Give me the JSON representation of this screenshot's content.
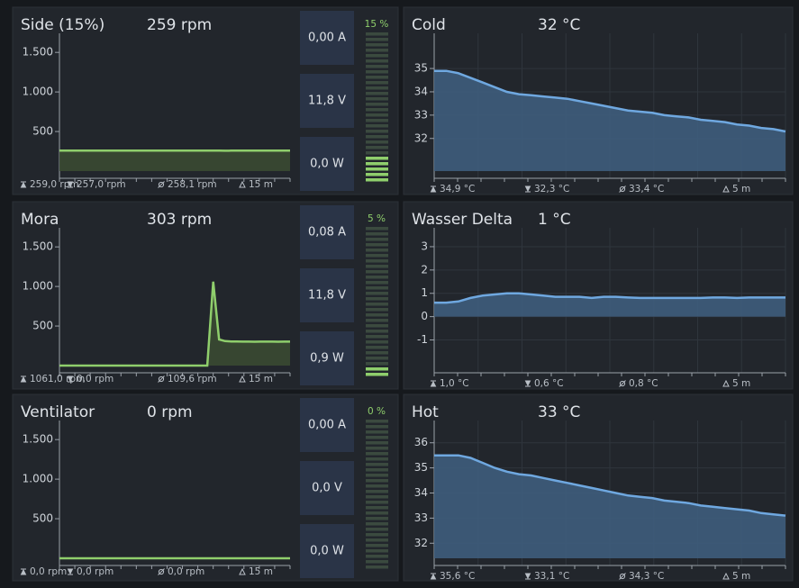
{
  "panels": [
    {
      "kind": "fan",
      "title": "Side (15%)",
      "reading": "259 rpm",
      "chart": {
        "type": "line",
        "color": "#8fce6c",
        "grid": false,
        "ylim": [
          0,
          1650
        ],
        "yticks": [
          {
            "value": 1500,
            "label": "1.500"
          },
          {
            "value": 1000,
            "label": "1.000"
          },
          500
        ],
        "values": [
          259,
          259,
          259,
          258,
          259,
          259,
          258,
          259,
          259,
          259,
          258,
          259,
          259,
          259,
          259,
          258,
          259,
          259,
          259,
          259,
          258,
          258,
          259,
          259,
          259,
          259,
          258,
          259,
          257,
          258,
          259,
          259,
          258,
          259,
          259,
          259,
          258,
          259,
          259,
          259
        ]
      },
      "stats": [
        "259,0 rpm",
        "257,0 rpm",
        "258,1 rpm",
        "15 m"
      ],
      "readouts": [
        "0,00 A",
        "11,8 V",
        "0,0 W"
      ],
      "gauge": {
        "value": 15,
        "label": "15 %"
      }
    },
    {
      "kind": "temp",
      "title": "Cold",
      "reading": "32 °C",
      "chart": {
        "type": "area",
        "color": "#6fa8e0",
        "grid": true,
        "ylim": [
          30.6,
          36.2
        ],
        "yticks": [
          32,
          33,
          34,
          35
        ],
        "values": [
          34.9,
          34.9,
          34.8,
          34.6,
          34.4,
          34.2,
          34.0,
          33.9,
          33.85,
          33.8,
          33.75,
          33.7,
          33.6,
          33.5,
          33.4,
          33.3,
          33.2,
          33.15,
          33.1,
          33.0,
          32.95,
          32.9,
          32.8,
          32.75,
          32.7,
          32.6,
          32.55,
          32.45,
          32.4,
          32.3
        ]
      },
      "stats": [
        "34,9 °C",
        "32,3 °C",
        "33,4 °C",
        "5 m"
      ]
    },
    {
      "kind": "fan",
      "title": "Mora",
      "reading": "303 rpm",
      "chart": {
        "type": "line",
        "color": "#8fce6c",
        "grid": false,
        "ylim": [
          0,
          1650
        ],
        "yticks": [
          {
            "value": 1500,
            "label": "1.500"
          },
          {
            "value": 1000,
            "label": "1.000"
          },
          500
        ],
        "values": [
          0,
          0,
          0,
          0,
          0,
          0,
          0,
          0,
          0,
          0,
          0,
          0,
          0,
          0,
          0,
          0,
          0,
          0,
          0,
          0,
          0,
          0,
          0,
          0,
          0,
          0,
          1061,
          330,
          310,
          305,
          304,
          303,
          303,
          302,
          303,
          303,
          303,
          302,
          303,
          303
        ]
      },
      "stats": [
        "1061,0 rpm",
        "0,0 rpm",
        "109,6 rpm",
        "15 m"
      ],
      "readouts": [
        "0,08 A",
        "11,8 V",
        "0,9 W"
      ],
      "gauge": {
        "value": 5,
        "label": "5 %"
      }
    },
    {
      "kind": "temp",
      "title": "Wasser Delta",
      "reading": "1 °C",
      "chart": {
        "type": "area",
        "color": "#6fa8e0",
        "grid": true,
        "ylim": [
          -2.1,
          3.5
        ],
        "yticks": [
          -1,
          0,
          1,
          2,
          3
        ],
        "values": [
          0.6,
          0.6,
          0.65,
          0.8,
          0.9,
          0.95,
          1.0,
          1.0,
          0.95,
          0.9,
          0.85,
          0.85,
          0.85,
          0.8,
          0.85,
          0.85,
          0.82,
          0.8,
          0.8,
          0.8,
          0.8,
          0.8,
          0.8,
          0.82,
          0.82,
          0.8,
          0.82,
          0.82,
          0.82,
          0.82
        ]
      },
      "stats": [
        "1,0 °C",
        "0,6 °C",
        "0,8 °C",
        "5 m"
      ]
    },
    {
      "kind": "fan",
      "title": "Ventilator",
      "reading": "0 rpm",
      "chart": {
        "type": "line",
        "color": "#8fce6c",
        "grid": false,
        "ylim": [
          0,
          1650
        ],
        "yticks": [
          {
            "value": 1500,
            "label": "1.500"
          },
          {
            "value": 1000,
            "label": "1.000"
          },
          500
        ],
        "values": [
          0,
          0,
          0,
          0,
          0,
          0,
          0,
          0,
          0,
          0,
          0,
          0,
          0,
          0,
          0,
          0,
          0,
          0,
          0,
          0,
          0,
          0,
          0,
          0,
          0,
          0,
          0,
          0,
          0,
          0,
          0,
          0,
          0,
          0,
          0,
          0,
          0,
          0,
          0,
          0
        ]
      },
      "stats": [
        "0,0 rpm",
        "0,0 rpm",
        "0,0 rpm",
        "15 m"
      ],
      "readouts": [
        "0,00 A",
        "0,0 V",
        "0,0 W"
      ],
      "gauge": {
        "value": 0,
        "label": "0 %"
      }
    },
    {
      "kind": "temp",
      "title": "Hot",
      "reading": "33 °C",
      "chart": {
        "type": "area",
        "color": "#6fa8e0",
        "grid": true,
        "ylim": [
          31.4,
          36.6
        ],
        "yticks": [
          32,
          33,
          34,
          35,
          36
        ],
        "values": [
          35.5,
          35.5,
          35.5,
          35.4,
          35.2,
          35.0,
          34.85,
          34.75,
          34.7,
          34.6,
          34.5,
          34.4,
          34.3,
          34.2,
          34.1,
          34.0,
          33.9,
          33.85,
          33.8,
          33.7,
          33.65,
          33.6,
          33.5,
          33.45,
          33.4,
          33.35,
          33.3,
          33.2,
          33.15,
          33.1
        ]
      },
      "stats": [
        "35,6 °C",
        "33,1 °C",
        "34,3 °C",
        "5 m"
      ]
    }
  ]
}
